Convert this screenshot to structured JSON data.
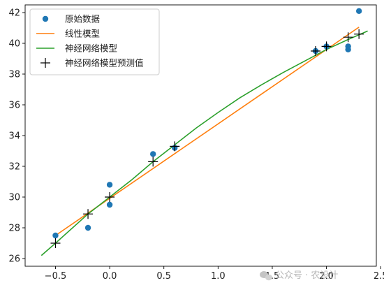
{
  "chart_data": {
    "type": "scatter",
    "xlim": [
      -0.78,
      2.46
    ],
    "ylim": [
      25.5,
      42.5
    ],
    "x_ticks": [
      -0.5,
      0.0,
      0.5,
      1.0,
      1.5,
      2.0,
      2.5
    ],
    "x_tick_labels": [
      "−0.5",
      "0.0",
      "0.5",
      "1.0",
      "1.5",
      "2.0",
      "2.5"
    ],
    "y_ticks": [
      26,
      28,
      30,
      32,
      34,
      36,
      38,
      40,
      42
    ],
    "y_tick_labels": [
      "26",
      "28",
      "30",
      "32",
      "34",
      "36",
      "38",
      "40",
      "42"
    ],
    "grid": false,
    "legend_position": "top-left",
    "series": [
      {
        "name": "原始数据",
        "kind": "scatter",
        "marker": "circle",
        "color": "#1f77b4",
        "points": [
          [
            -0.5,
            27.5
          ],
          [
            -0.2,
            28.0
          ],
          [
            0.0,
            30.8
          ],
          [
            0.0,
            29.5
          ],
          [
            0.4,
            32.8
          ],
          [
            0.6,
            33.2
          ],
          [
            1.9,
            39.5
          ],
          [
            2.0,
            39.8
          ],
          [
            2.2,
            39.8
          ],
          [
            2.2,
            39.6
          ],
          [
            2.3,
            42.1
          ]
        ]
      },
      {
        "name": "线性模型",
        "kind": "line",
        "color": "#ff7f0e",
        "points": [
          [
            -0.5,
            27.5
          ],
          [
            2.3,
            41.05
          ]
        ]
      },
      {
        "name": "神经网络模型",
        "kind": "line",
        "color": "#2ca02c",
        "points": [
          [
            -0.63,
            26.2
          ],
          [
            -0.5,
            27.0
          ],
          [
            -0.2,
            28.9
          ],
          [
            0.0,
            30.0
          ],
          [
            0.2,
            31.1
          ],
          [
            0.4,
            32.3
          ],
          [
            0.6,
            33.4
          ],
          [
            0.8,
            34.5
          ],
          [
            1.0,
            35.5
          ],
          [
            1.2,
            36.45
          ],
          [
            1.4,
            37.3
          ],
          [
            1.6,
            38.1
          ],
          [
            1.8,
            38.85
          ],
          [
            2.0,
            39.6
          ],
          [
            2.2,
            40.25
          ],
          [
            2.38,
            40.8
          ]
        ]
      },
      {
        "name": "神经网络模型预测值",
        "kind": "scatter",
        "marker": "plus",
        "color": "#000000",
        "points": [
          [
            -0.5,
            27.0
          ],
          [
            -0.2,
            28.9
          ],
          [
            0.0,
            30.0
          ],
          [
            0.4,
            32.3
          ],
          [
            0.6,
            33.3
          ],
          [
            1.9,
            39.5
          ],
          [
            2.0,
            39.8
          ],
          [
            2.2,
            40.4
          ],
          [
            2.3,
            40.6
          ]
        ]
      }
    ]
  },
  "watermark": {
    "text": "公众号 · 农设计",
    "icon": "wechat-icon",
    "color": "#b8b8b8"
  }
}
